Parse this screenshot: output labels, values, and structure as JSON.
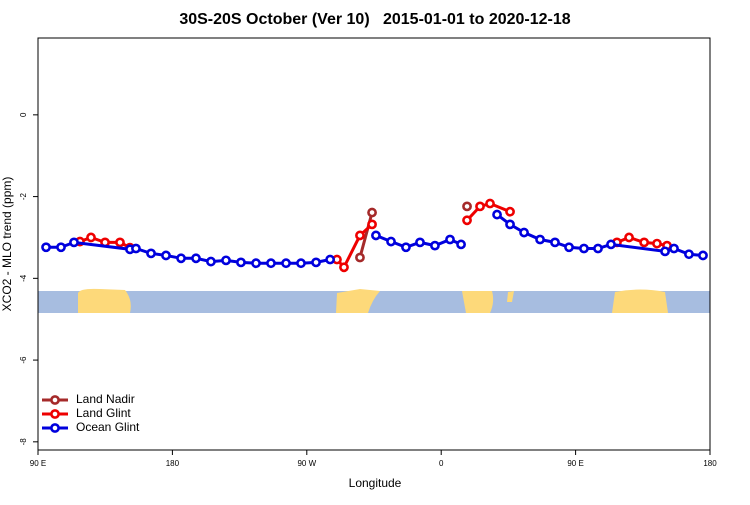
{
  "chart_data": {
    "type": "line",
    "title": "30S-20S October (Ver 10)   2015-01-01 to 2020-12-18",
    "xlabel": "Longitude",
    "ylabel": "XCO2 - MLO trend (ppm)",
    "xlim": [
      90,
      540
    ],
    "ylim": [
      -8.2,
      1.88
    ],
    "xticks": [
      {
        "value": 90,
        "label": "90 E"
      },
      180,
      {
        "value": 270,
        "label": "90 W"
      },
      {
        "value": 360,
        "label": "0"
      },
      {
        "value": 450,
        "label": "90 E"
      },
      {
        "value": 540,
        "label": "180"
      }
    ],
    "yticks": [
      0,
      -2,
      -4,
      -6,
      -8
    ],
    "legend": "bottom-left",
    "series": [
      {
        "name": "Land Nadir",
        "color": "#a52a2a",
        "x": [
          305.6,
          313.7,
          345,
          377.3
        ],
        "values": [
          -3.49,
          -2.39,
          null,
          -2.24
        ]
      },
      {
        "name": "Land Glint",
        "color": "#ee0000",
        "x": [
          118.1,
          125.5,
          134.9,
          144.9,
          151.6,
          220,
          290.2,
          294.9,
          305.6,
          313.7,
          345,
          377.3,
          386,
          392.7,
          406.1,
          440,
          477.7,
          485.8,
          495.9,
          504.5,
          511.2
        ],
        "values": [
          -3.1,
          -3.0,
          -3.12,
          -3.12,
          -3.25,
          null,
          -3.54,
          -3.73,
          -2.95,
          -2.68,
          null,
          -2.58,
          -2.24,
          -2.17,
          -2.37,
          null,
          -3.12,
          -3.0,
          -3.12,
          -3.15,
          -3.2
        ]
      },
      {
        "name": "Ocean Glint",
        "color": "#0000dd",
        "x": [
          95.4,
          105.4,
          114.1,
          151.6,
          155.6,
          165.7,
          175.7,
          185.8,
          195.8,
          205.8,
          215.9,
          225.9,
          236,
          246,
          256.1,
          266.1,
          276.2,
          285.6,
          300,
          316.3,
          326.4,
          336.4,
          345.8,
          355.8,
          365.9,
          373.3,
          385,
          397.4,
          406.1,
          415.5,
          426.2,
          436.2,
          445.6,
          455.6,
          465,
          473.7,
          509.9,
          515.9,
          525.9,
          535.3
        ],
        "values": [
          -3.24,
          -3.24,
          -3.12,
          -3.29,
          -3.27,
          -3.39,
          -3.44,
          -3.51,
          -3.51,
          -3.59,
          -3.56,
          -3.61,
          -3.63,
          -3.63,
          -3.63,
          -3.63,
          -3.61,
          -3.54,
          null,
          -2.95,
          -3.1,
          -3.24,
          -3.12,
          -3.2,
          -3.05,
          -3.17,
          null,
          -2.44,
          -2.68,
          -2.88,
          -3.05,
          -3.12,
          -3.24,
          -3.27,
          -3.27,
          -3.17,
          -3.34,
          -3.27,
          -3.41,
          -3.44
        ]
      }
    ]
  }
}
